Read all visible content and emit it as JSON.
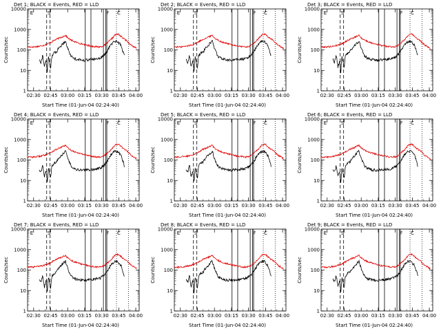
{
  "figure": {
    "xlabel": "Start Time (01-Jun-04 02:24:40)",
    "ylabel": "Counts/sec"
  },
  "legend": {
    "black": "BLACK = Events",
    "red": "RED = LLD"
  },
  "colors": {
    "events": "#000000",
    "lld": "#e00000",
    "axes": "#000000"
  },
  "chart_data": {
    "type": "line",
    "panels": [
      {
        "title": "Det 1",
        "title_full": "Det 1; BLACK = Events, RED = LLD",
        "markers": [
          "E",
          "S",
          "F",
          "C"
        ]
      },
      {
        "title": "Det 2",
        "title_full": "Det 2; BLACK = Events, RED = LLD",
        "markers": [
          "E",
          "S",
          "F",
          "C"
        ]
      },
      {
        "title": "Det 3",
        "title_full": "Det 3; BLACK = Events, RED = LLD",
        "markers": [
          "E",
          "S",
          "F",
          "C"
        ]
      },
      {
        "title": "Det 4",
        "title_full": "Det 4; BLACK = Events, RED = LLD",
        "markers": [
          "E",
          "S",
          "F",
          "C"
        ]
      },
      {
        "title": "Det 5",
        "title_full": "Det 5; BLACK = Events, RED = LLD",
        "markers": [
          "E",
          "S",
          "F",
          "C"
        ]
      },
      {
        "title": "Det 6",
        "title_full": "Det 6; BLACK = Events, RED = LLD",
        "markers": [
          "E",
          "S",
          "F",
          "C"
        ]
      },
      {
        "title": "Det 7",
        "title_full": "Det 7; BLACK = Events, RED = LLD",
        "markers": [
          "E",
          "S",
          "F",
          "C"
        ]
      },
      {
        "title": "Det 8",
        "title_full": "Det 8; BLACK = Events, RED = LLD",
        "markers": [
          "E",
          "S",
          "F",
          "C"
        ]
      },
      {
        "title": "Det 9",
        "title_full": "Det 9; BLACK = Events, RED = LLD",
        "markers": [
          "E",
          "S",
          "F",
          "C"
        ]
      }
    ],
    "x_ticks": [
      "02:30",
      "02:45",
      "03:00",
      "03:15",
      "03:30",
      "03:45",
      "04:00"
    ],
    "x_tick_minutes": [
      150,
      165,
      180,
      195,
      210,
      225,
      240
    ],
    "xlim_minutes": [
      144.67,
      243
    ],
    "y_ticks": [
      "1",
      "10",
      "100",
      "1000",
      "10000"
    ],
    "y_tick_values": [
      1,
      10,
      100,
      1000,
      10000
    ],
    "ylim": [
      1,
      10000
    ],
    "y_scale": "log",
    "vlines": {
      "dashed": [
        161.5,
        164.5
      ],
      "solid": [
        195.5,
        200.5,
        211.5,
        213.5,
        214.5
      ],
      "dotted": [
        223,
        233.5
      ]
    },
    "series": [
      {
        "name": "LLD",
        "color": "red",
        "x": [
          144.67,
          150,
          155,
          160,
          163,
          166,
          170,
          175,
          178,
          180,
          183,
          187,
          192,
          197,
          202,
          207,
          210,
          212,
          214,
          218,
          222,
          225,
          228,
          232,
          236,
          241
        ],
        "y": [
          140,
          140,
          150,
          175,
          205,
          250,
          330,
          430,
          520,
          390,
          300,
          240,
          200,
          170,
          150,
          140,
          145,
          160,
          200,
          310,
          560,
          580,
          400,
          280,
          170,
          115
        ]
      },
      {
        "name": "Events",
        "color": "black",
        "x": [
          155,
          156.5,
          158,
          159.5,
          161,
          162,
          163,
          164,
          165,
          166,
          168,
          170,
          172,
          175,
          178,
          180,
          183,
          186,
          190,
          195,
          200,
          205,
          209,
          212,
          215,
          218,
          221,
          224,
          227,
          230
        ],
        "y": [
          35,
          25,
          55,
          15,
          30,
          8,
          45,
          25,
          12,
          50,
          70,
          80,
          120,
          180,
          280,
          120,
          50,
          38,
          33,
          32,
          34,
          36,
          42,
          55,
          90,
          180,
          260,
          260,
          170,
          50
        ]
      }
    ]
  }
}
